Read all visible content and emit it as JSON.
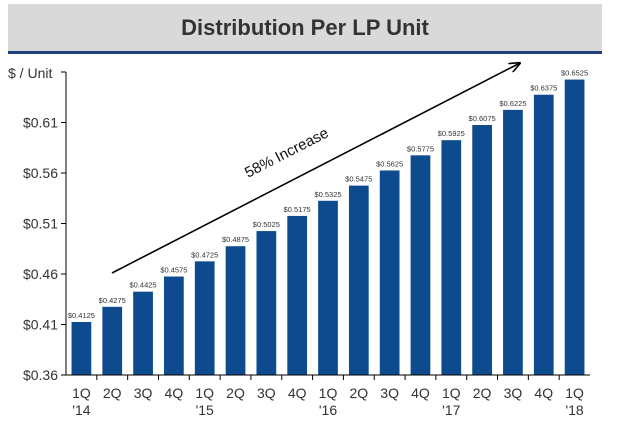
{
  "chart_data": {
    "type": "bar",
    "title": "Distribution Per LP Unit",
    "ylabel": "$ / Unit",
    "xlabel": "",
    "categories": [
      [
        "1Q",
        "'14"
      ],
      [
        "2Q",
        ""
      ],
      [
        "3Q",
        ""
      ],
      [
        "4Q",
        ""
      ],
      [
        "1Q",
        "'15"
      ],
      [
        "2Q",
        ""
      ],
      [
        "3Q",
        ""
      ],
      [
        "4Q",
        ""
      ],
      [
        "1Q",
        "'16"
      ],
      [
        "2Q",
        ""
      ],
      [
        "3Q",
        ""
      ],
      [
        "4Q",
        ""
      ],
      [
        "1Q",
        "'17"
      ],
      [
        "2Q",
        ""
      ],
      [
        "3Q",
        ""
      ],
      [
        "4Q",
        ""
      ],
      [
        "1Q",
        "'18"
      ]
    ],
    "values": [
      0.4125,
      0.4275,
      0.4425,
      0.4575,
      0.4725,
      0.4875,
      0.5025,
      0.5175,
      0.5325,
      0.5475,
      0.5625,
      0.5775,
      0.5925,
      0.6075,
      0.6225,
      0.6375,
      0.6525
    ],
    "data_labels": [
      "$0.4125",
      "$0.4275",
      "$0.4425",
      "$0.4575",
      "$0.4725",
      "$0.4875",
      "$0.5025",
      "$0.5175",
      "$0.5325",
      "$0.5475",
      "$0.5625",
      "$0.5775",
      "$0.5925",
      "$0.6075",
      "$0.6225",
      "$0.6375",
      "$0.6525"
    ],
    "yticks": [
      0.36,
      0.41,
      0.46,
      0.51,
      0.56,
      0.61
    ],
    "ytick_labels": [
      "$0.36",
      "$0.41",
      "$0.46",
      "$0.51",
      "$0.56",
      "$0.61"
    ],
    "ylim": [
      0.36,
      0.66
    ],
    "grid": false,
    "annotation": "58% Increase",
    "colors": {
      "bar": "#0d4a8e",
      "title_bg": "#d9d9d9",
      "title_rule": "#1f3f7a",
      "text": "#333333"
    }
  }
}
